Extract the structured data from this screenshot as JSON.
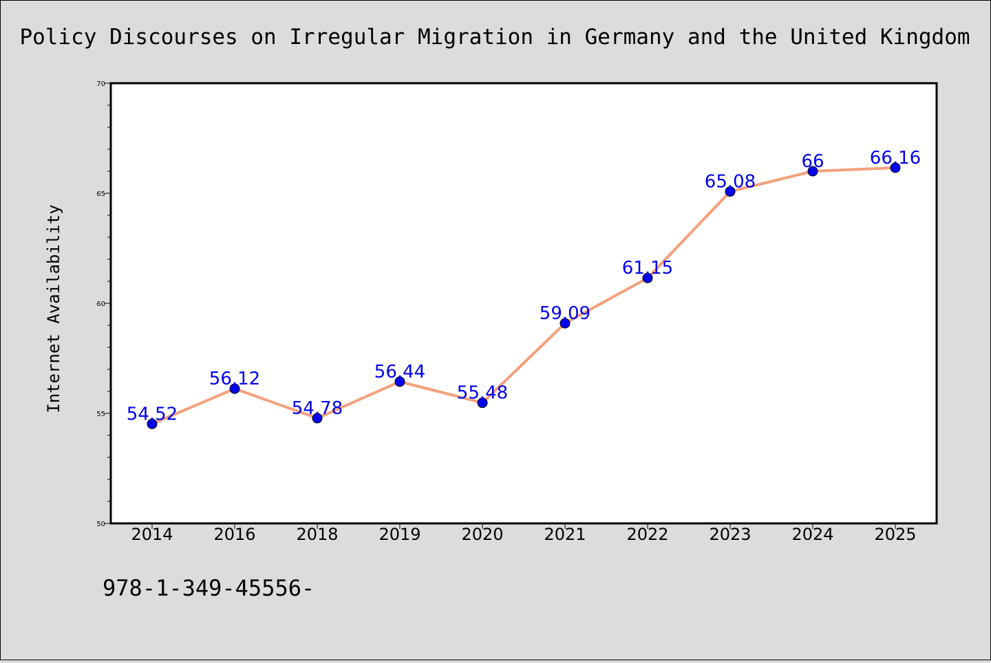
{
  "chart_data": {
    "type": "line",
    "title": "Policy Discourses on Irregular Migration in Germany and the United Kingdom",
    "xlabel": "",
    "ylabel": "Internet Availability",
    "categories": [
      "2014",
      "2016",
      "2018",
      "2019",
      "2020",
      "2021",
      "2022",
      "2023",
      "2024",
      "2025"
    ],
    "series": [
      {
        "values": [
          54.52,
          56.12,
          54.78,
          56.44,
          55.48,
          59.09,
          61.15,
          65.08,
          66,
          66.16
        ],
        "data_labels": [
          "54.52",
          "56.12",
          "54.78",
          "56.44",
          "55.48",
          "59.09",
          "61.15",
          "65.08",
          "66",
          "66.16"
        ]
      }
    ],
    "ylim": [
      50,
      70
    ],
    "yticks": [
      50,
      55,
      60,
      65,
      70
    ],
    "grid": false,
    "legend": "none",
    "colors": {
      "line": "#f4a07c",
      "marker": "#0000ee",
      "label": "#0000ee",
      "background": "#dcdcdc",
      "plot_background": "#ffffff"
    }
  },
  "footer_text": "978-1-349-45556-"
}
